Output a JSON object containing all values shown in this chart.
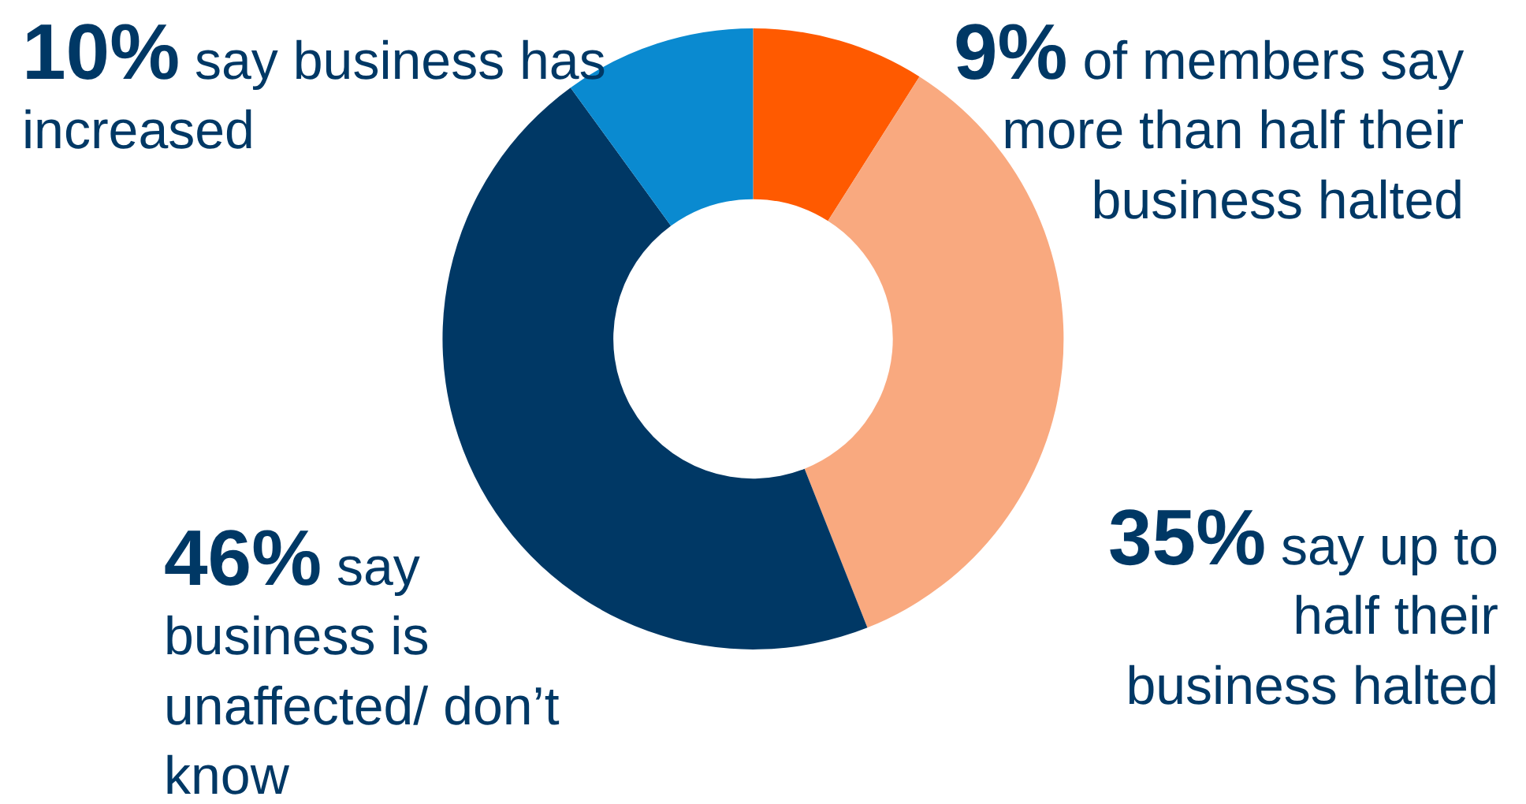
{
  "chart_data": {
    "type": "donut",
    "categories": [
      "of members say more than half their business halted",
      "say up to half their business halted",
      "say business is unaffected/ don’t know",
      "say business has increased"
    ],
    "values": [
      9,
      35,
      46,
      10
    ],
    "value_labels": [
      "9%",
      "35%",
      "46%",
      "10%"
    ],
    "colors": [
      "#ff5a00",
      "#f9a97f",
      "#003865",
      "#0a8ad0"
    ],
    "legend": false
  }
}
